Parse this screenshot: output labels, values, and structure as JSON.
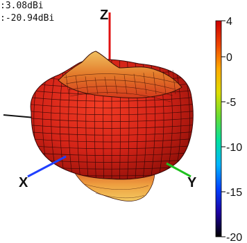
{
  "readouts": {
    "max": ":3.08dBi",
    "min": ":-20.94dBi"
  },
  "axes": {
    "z_label": "Z",
    "x_label": "X",
    "y_label": "Y"
  },
  "chart_data": {
    "type": "heatmap",
    "title": "",
    "subtitle": "",
    "max_gain_dbi": 3.08,
    "min_gain_dbi": -20.94,
    "colorbar": {
      "range": [
        -20,
        4
      ],
      "ticks": [
        4,
        0,
        -5,
        -10,
        -15,
        -20
      ],
      "tick_labels": [
        "4",
        "0",
        "-5",
        "-10",
        "-15",
        "-20"
      ],
      "colormap": [
        "#000000",
        "#1c00a0",
        "#0040ff",
        "#00b4ff",
        "#00e0a0",
        "#66dd33",
        "#dddd00",
        "#ffaa00",
        "#ee4400",
        "#cc0000"
      ]
    },
    "surface": {
      "style": "3D radiation pattern mesh",
      "dominant_color": "#d42418",
      "wire_color": "#2a0505"
    }
  }
}
